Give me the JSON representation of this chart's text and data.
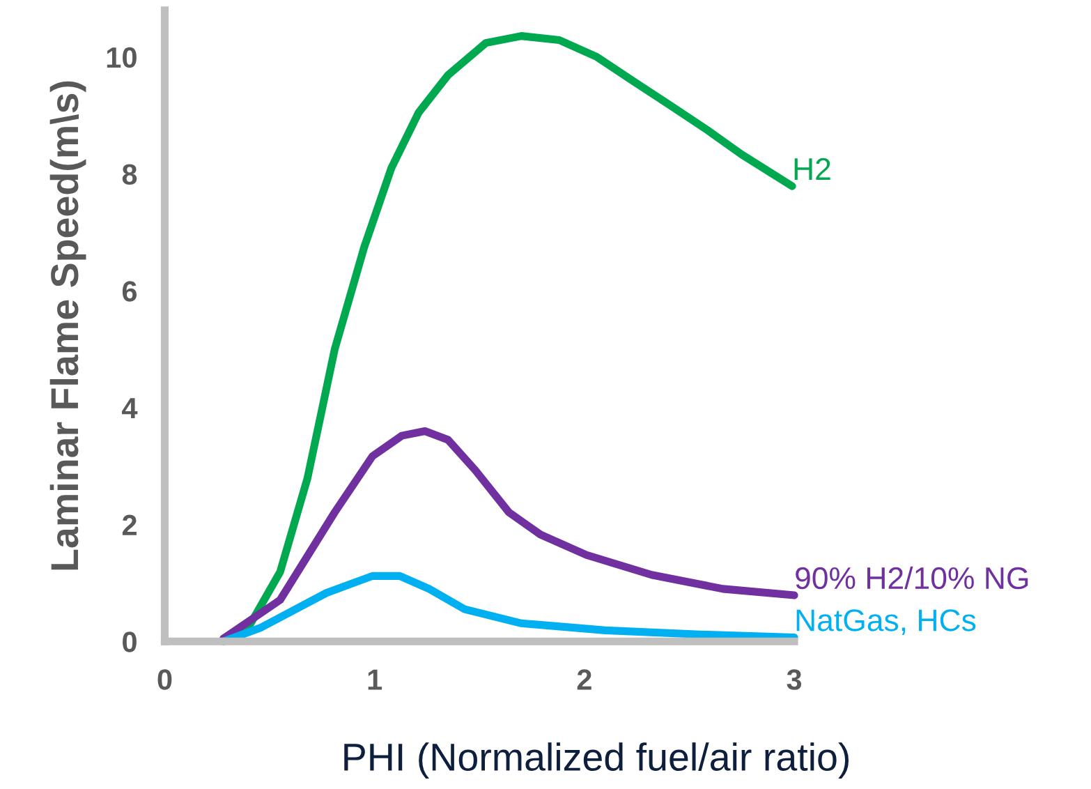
{
  "chart_data": {
    "type": "line",
    "xlabel": "PHI (Normalized fuel/air ratio)",
    "ylabel": "Laminar Flame Speed(m\\s)",
    "xlim": [
      0,
      3
    ],
    "ylim": [
      0,
      10.8
    ],
    "xticks": [
      0,
      1,
      2,
      3
    ],
    "yticks": [
      0,
      2,
      4,
      6,
      8,
      10
    ],
    "grid": false,
    "legend": false,
    "marker": "none",
    "line_style": "solid",
    "series": [
      {
        "name": "H2",
        "color": "#00a84f",
        "x": [
          0.28,
          0.41,
          0.55,
          0.68,
          0.81,
          0.95,
          1.08,
          1.21,
          1.35,
          1.53,
          1.7,
          1.88,
          2.06,
          2.24,
          2.41,
          2.59,
          2.75,
          2.99
        ],
        "values": [
          0.05,
          0.31,
          1.19,
          2.79,
          5.0,
          6.74,
          8.1,
          9.05,
          9.69,
          10.24,
          10.36,
          10.29,
          10.0,
          9.57,
          9.17,
          8.74,
          8.33,
          7.79
        ]
      },
      {
        "name": "90% H2/10% NG",
        "color": "#7030a0",
        "x": [
          0.28,
          0.55,
          0.81,
          0.99,
          1.13,
          1.24,
          1.35,
          1.48,
          1.64,
          1.79,
          2.01,
          2.32,
          2.66,
          3.0
        ],
        "values": [
          0.05,
          0.71,
          2.21,
          3.17,
          3.52,
          3.6,
          3.45,
          2.93,
          2.21,
          1.83,
          1.48,
          1.14,
          0.9,
          0.79
        ]
      },
      {
        "name": "NatGas, HCs",
        "color": "#00b0f0",
        "x": [
          0.28,
          0.46,
          0.77,
          0.99,
          1.12,
          1.26,
          1.43,
          1.7,
          2.1,
          2.55,
          3.0
        ],
        "values": [
          0.0,
          0.24,
          0.83,
          1.12,
          1.12,
          0.9,
          0.55,
          0.31,
          0.19,
          0.12,
          0.07
        ]
      }
    ]
  }
}
